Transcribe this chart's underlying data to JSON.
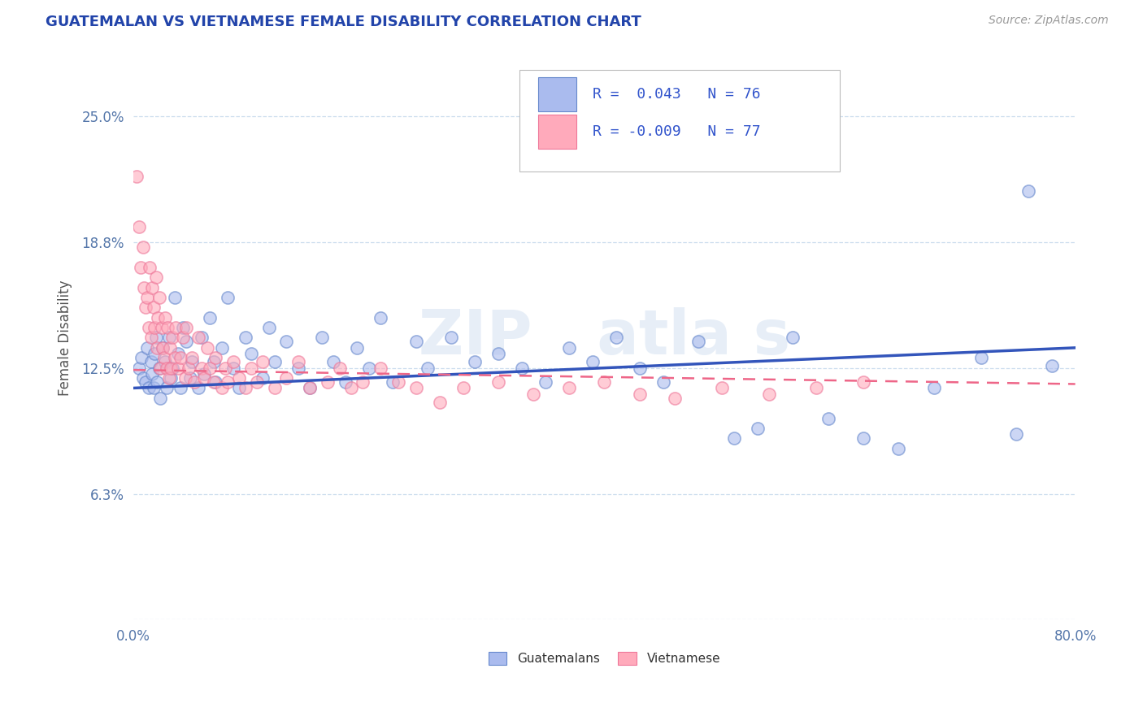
{
  "title": "GUATEMALAN VS VIETNAMESE FEMALE DISABILITY CORRELATION CHART",
  "source_text": "Source: ZipAtlas.com",
  "ylabel": "Female Disability",
  "ytick_vals": [
    0.0,
    0.0625,
    0.125,
    0.1875,
    0.25
  ],
  "ytick_labels": [
    "",
    "6.3%",
    "12.5%",
    "18.8%",
    "25.0%"
  ],
  "xlim": [
    0.0,
    0.8
  ],
  "ylim": [
    0.0,
    0.28
  ],
  "r1": 0.043,
  "n1": 76,
  "r2": -0.009,
  "n2": 77,
  "legend_label1": "Guatemalans",
  "legend_label2": "Vietnamese",
  "blue_dot_color": "#AABBEE",
  "blue_edge_color": "#6688CC",
  "pink_dot_color": "#FFAABB",
  "pink_edge_color": "#EE7799",
  "blue_line_color": "#3355BB",
  "pink_line_color": "#EE6688",
  "title_color": "#2244AA",
  "tick_color": "#5577AA",
  "grid_color": "#CCDDEE",
  "background_color": "#FFFFFF",
  "watermark_color": "#DDE8F5",
  "seed": 123,
  "guat_x": [
    0.005,
    0.007,
    0.008,
    0.01,
    0.012,
    0.013,
    0.015,
    0.016,
    0.017,
    0.018,
    0.019,
    0.02,
    0.022,
    0.023,
    0.025,
    0.027,
    0.028,
    0.03,
    0.032,
    0.033,
    0.035,
    0.038,
    0.04,
    0.042,
    0.045,
    0.048,
    0.05,
    0.055,
    0.058,
    0.06,
    0.065,
    0.068,
    0.07,
    0.075,
    0.08,
    0.085,
    0.09,
    0.095,
    0.1,
    0.11,
    0.115,
    0.12,
    0.13,
    0.14,
    0.15,
    0.16,
    0.17,
    0.18,
    0.19,
    0.2,
    0.21,
    0.22,
    0.24,
    0.25,
    0.27,
    0.29,
    0.31,
    0.33,
    0.35,
    0.37,
    0.39,
    0.41,
    0.43,
    0.45,
    0.48,
    0.51,
    0.53,
    0.56,
    0.59,
    0.62,
    0.65,
    0.68,
    0.72,
    0.75,
    0.76,
    0.78
  ],
  "guat_y": [
    0.125,
    0.13,
    0.12,
    0.118,
    0.135,
    0.115,
    0.128,
    0.122,
    0.115,
    0.132,
    0.14,
    0.118,
    0.125,
    0.11,
    0.135,
    0.128,
    0.115,
    0.14,
    0.12,
    0.125,
    0.16,
    0.132,
    0.115,
    0.145,
    0.138,
    0.12,
    0.128,
    0.115,
    0.14,
    0.122,
    0.15,
    0.128,
    0.118,
    0.135,
    0.16,
    0.125,
    0.115,
    0.14,
    0.132,
    0.12,
    0.145,
    0.128,
    0.138,
    0.125,
    0.115,
    0.14,
    0.128,
    0.118,
    0.135,
    0.125,
    0.15,
    0.118,
    0.138,
    0.125,
    0.14,
    0.128,
    0.132,
    0.125,
    0.118,
    0.135,
    0.128,
    0.14,
    0.125,
    0.118,
    0.138,
    0.09,
    0.095,
    0.14,
    0.1,
    0.09,
    0.085,
    0.115,
    0.13,
    0.092,
    0.213,
    0.126
  ],
  "viet_x": [
    0.003,
    0.005,
    0.006,
    0.008,
    0.009,
    0.01,
    0.012,
    0.013,
    0.014,
    0.015,
    0.016,
    0.017,
    0.018,
    0.019,
    0.02,
    0.021,
    0.022,
    0.023,
    0.024,
    0.025,
    0.026,
    0.027,
    0.028,
    0.029,
    0.03,
    0.031,
    0.032,
    0.033,
    0.035,
    0.036,
    0.038,
    0.04,
    0.042,
    0.044,
    0.045,
    0.047,
    0.05,
    0.052,
    0.055,
    0.058,
    0.06,
    0.063,
    0.065,
    0.068,
    0.07,
    0.075,
    0.078,
    0.08,
    0.085,
    0.09,
    0.095,
    0.1,
    0.105,
    0.11,
    0.12,
    0.13,
    0.14,
    0.15,
    0.165,
    0.175,
    0.185,
    0.195,
    0.21,
    0.225,
    0.24,
    0.26,
    0.28,
    0.31,
    0.34,
    0.37,
    0.4,
    0.43,
    0.46,
    0.5,
    0.54,
    0.58,
    0.62
  ],
  "viet_y": [
    0.22,
    0.195,
    0.175,
    0.185,
    0.165,
    0.155,
    0.16,
    0.145,
    0.175,
    0.14,
    0.165,
    0.155,
    0.145,
    0.17,
    0.135,
    0.15,
    0.16,
    0.125,
    0.145,
    0.135,
    0.13,
    0.15,
    0.125,
    0.145,
    0.12,
    0.135,
    0.125,
    0.14,
    0.13,
    0.145,
    0.125,
    0.13,
    0.14,
    0.12,
    0.145,
    0.125,
    0.13,
    0.118,
    0.14,
    0.125,
    0.12,
    0.135,
    0.125,
    0.118,
    0.13,
    0.115,
    0.125,
    0.118,
    0.128,
    0.12,
    0.115,
    0.125,
    0.118,
    0.128,
    0.115,
    0.12,
    0.128,
    0.115,
    0.118,
    0.125,
    0.115,
    0.118,
    0.125,
    0.118,
    0.115,
    0.108,
    0.115,
    0.118,
    0.112,
    0.115,
    0.118,
    0.112,
    0.11,
    0.115,
    0.112,
    0.115,
    0.118
  ]
}
